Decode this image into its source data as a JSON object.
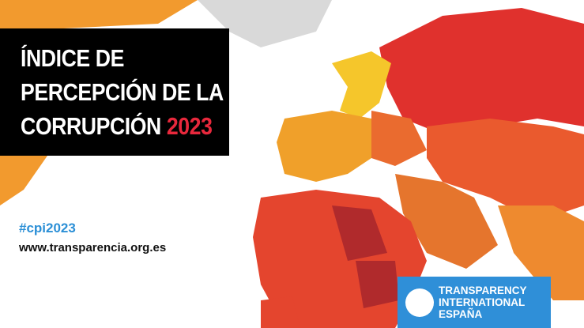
{
  "title": {
    "line1": "ÍNDICE DE",
    "line2": "PERCEPCIÓN DE LA",
    "line3": "CORRUPCIÓN",
    "year": "2023"
  },
  "hashtag": "#cpi2023",
  "website": "www.transparencia.org.es",
  "logo": {
    "line1": "TRANSPARENCY",
    "line2": "INTERNATIONAL",
    "line3": "ESPAÑA"
  }
}
